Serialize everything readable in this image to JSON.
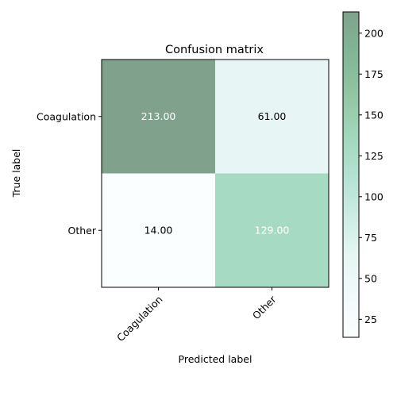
{
  "chart_data": {
    "type": "heatmap",
    "title": "Confusion matrix",
    "xlabel": "Predicted label",
    "ylabel": "True label",
    "x_categories": [
      "Coagulation",
      "Other"
    ],
    "y_categories": [
      "Coagulation",
      "Other"
    ],
    "values": [
      [
        213,
        61
      ],
      [
        14,
        129
      ]
    ],
    "value_labels": [
      [
        "213.00",
        "61.00"
      ],
      [
        "14.00",
        "129.00"
      ]
    ],
    "colorbar": {
      "min": 14,
      "max": 213,
      "ticks": [
        25,
        50,
        75,
        100,
        125,
        150,
        175,
        200
      ],
      "tick_labels": [
        "25",
        "50",
        "75",
        "100",
        "125",
        "150",
        "175",
        "200"
      ]
    },
    "colormap": "BuGn (alpha 0.5)",
    "colors": {
      "low": "#f7fcfd",
      "mid": "#66c2a4",
      "high": "#00441b"
    },
    "grid": false
  }
}
